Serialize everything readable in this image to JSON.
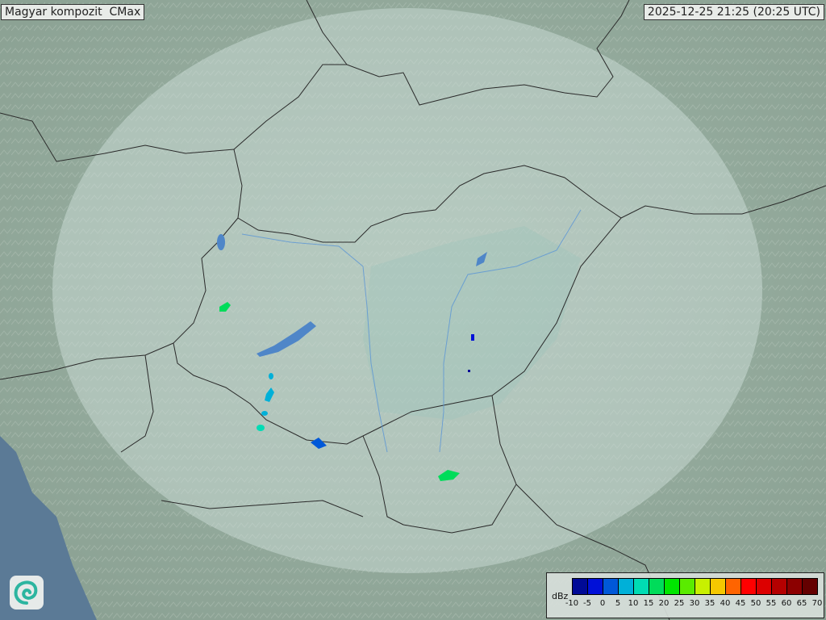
{
  "title": "Magyar kompozit  CMax",
  "timestamp": "2025-12-25 21:25 (20:25 UTC)",
  "logo_icon": "swirl-logo-icon",
  "legend": {
    "unit": "dBz",
    "ticks": [
      "-10",
      "-5",
      "0",
      "5",
      "10",
      "15",
      "20",
      "25",
      "30",
      "35",
      "40",
      "45",
      "50",
      "55",
      "60",
      "65",
      "70"
    ],
    "colors": [
      "#000a96",
      "#0010d8",
      "#0058d8",
      "#00b0d8",
      "#00dcb4",
      "#00dc5a",
      "#00e600",
      "#5aeb00",
      "#c8f000",
      "#f5c800",
      "#ff6400",
      "#ff0000",
      "#dc0000",
      "#b40000",
      "#8c0000",
      "#640000"
    ]
  },
  "colors": {
    "terrain": "#8fa69a",
    "coverage": "#c9dcd6",
    "border": "#2a2a2a",
    "water": "#4f86c8",
    "sea": "#5b7a96"
  }
}
